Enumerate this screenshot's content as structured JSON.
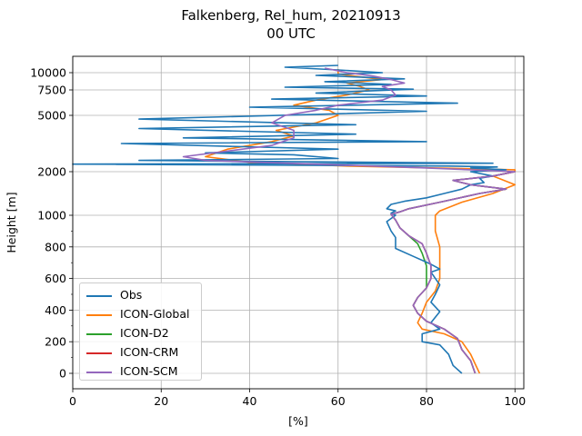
{
  "title": {
    "line1": "Falkenberg, Rel_hum, 20210913",
    "line2": "00 UTC"
  },
  "chart_data": {
    "type": "line",
    "title": "Falkenberg, Rel_hum, 20210913 00 UTC",
    "xlabel": "[%]",
    "ylabel": "Height [m]",
    "xlim": [
      0,
      102
    ],
    "x_ticks": [
      0,
      20,
      40,
      60,
      80,
      100
    ],
    "y_ticks_lower": [
      0,
      200,
      400,
      600,
      800,
      1000
    ],
    "y_ticks_upper": [
      2000,
      5000,
      7500,
      10000
    ],
    "y_scale_note": "linear 0-1000 m, compressed above",
    "grid": true,
    "legend_position": "lower-left",
    "colors": {
      "Obs": "#1f77b4",
      "ICON-Global": "#ff7f0e",
      "ICON-D2": "#2ca02c",
      "ICON-CRM": "#d62728",
      "ICON-SCM": "#9467bd"
    },
    "series": [
      {
        "name": "Obs",
        "points": [
          [
            88,
            0
          ],
          [
            86,
            50
          ],
          [
            85,
            120
          ],
          [
            83,
            180
          ],
          [
            79,
            200
          ],
          [
            79,
            250
          ],
          [
            83,
            280
          ],
          [
            81,
            320
          ],
          [
            83,
            390
          ],
          [
            81,
            450
          ],
          [
            82,
            500
          ],
          [
            83,
            560
          ],
          [
            81,
            640
          ],
          [
            83,
            660
          ],
          [
            81,
            690
          ],
          [
            77,
            740
          ],
          [
            73,
            790
          ],
          [
            73,
            860
          ],
          [
            72,
            900
          ],
          [
            71,
            960
          ],
          [
            73,
            1000
          ],
          [
            72,
            1050
          ],
          [
            73,
            1100
          ],
          [
            71,
            1150
          ],
          [
            72,
            1250
          ],
          [
            75,
            1320
          ],
          [
            80,
            1400
          ],
          [
            84,
            1500
          ],
          [
            88,
            1600
          ],
          [
            90,
            1700
          ],
          [
            93,
            1750
          ],
          [
            92,
            1850
          ],
          [
            95,
            1900
          ],
          [
            90,
            2000
          ],
          [
            98,
            2100
          ],
          [
            90,
            2200
          ],
          [
            96,
            2250
          ],
          [
            85,
            2300
          ],
          [
            0,
            2400
          ],
          [
            95,
            2450
          ],
          [
            15,
            2600
          ],
          [
            60,
            2700
          ],
          [
            50,
            2900
          ],
          [
            30,
            3000
          ],
          [
            60,
            3200
          ],
          [
            11,
            3500
          ],
          [
            80,
            3600
          ],
          [
            25,
            3800
          ],
          [
            64,
            4000
          ],
          [
            15,
            4300
          ],
          [
            64,
            4500
          ],
          [
            15,
            4800
          ],
          [
            55,
            5100
          ],
          [
            80,
            5400
          ],
          [
            40,
            5800
          ],
          [
            87,
            6200
          ],
          [
            45,
            6600
          ],
          [
            80,
            6900
          ],
          [
            55,
            7200
          ],
          [
            77,
            7600
          ],
          [
            48,
            7900
          ],
          [
            72,
            8300
          ],
          [
            57,
            8700
          ],
          [
            75,
            9100
          ],
          [
            55,
            9600
          ],
          [
            70,
            10000
          ],
          [
            60,
            10300
          ],
          [
            48,
            10600
          ],
          [
            60,
            10800
          ]
        ]
      },
      {
        "name": "ICON-Global",
        "points": [
          [
            92,
            0
          ],
          [
            91,
            60
          ],
          [
            90,
            120
          ],
          [
            88,
            200
          ],
          [
            84,
            250
          ],
          [
            79,
            280
          ],
          [
            78,
            320
          ],
          [
            79,
            380
          ],
          [
            80,
            450
          ],
          [
            82,
            520
          ],
          [
            83,
            600
          ],
          [
            83,
            700
          ],
          [
            83,
            800
          ],
          [
            82,
            900
          ],
          [
            82,
            1000
          ],
          [
            83,
            1100
          ],
          [
            88,
            1300
          ],
          [
            95,
            1500
          ],
          [
            100,
            1700
          ],
          [
            95,
            1900
          ],
          [
            100,
            2000
          ],
          [
            100,
            2100
          ],
          [
            82,
            2200
          ],
          [
            62,
            2300
          ],
          [
            40,
            2500
          ],
          [
            30,
            2800
          ],
          [
            35,
            3200
          ],
          [
            45,
            3600
          ],
          [
            50,
            3900
          ],
          [
            46,
            4200
          ],
          [
            55,
            4600
          ],
          [
            60,
            5000
          ],
          [
            58,
            5500
          ],
          [
            50,
            6000
          ],
          [
            55,
            6500
          ],
          [
            62,
            7000
          ],
          [
            67,
            7500
          ],
          [
            65,
            8000
          ],
          [
            62,
            8500
          ],
          [
            70,
            9000
          ],
          [
            60,
            9800
          ],
          [
            60,
            10400
          ]
        ]
      },
      {
        "name": "ICON-D2",
        "points": [
          [
            91,
            0
          ],
          [
            90,
            80
          ],
          [
            88,
            150
          ],
          [
            87,
            220
          ],
          [
            84,
            280
          ],
          [
            80,
            330
          ],
          [
            78,
            380
          ],
          [
            77,
            430
          ],
          [
            78,
            480
          ],
          [
            80,
            540
          ],
          [
            80,
            600
          ],
          [
            80,
            680
          ],
          [
            79,
            760
          ],
          [
            78,
            820
          ],
          [
            76,
            870
          ],
          [
            74,
            920
          ],
          [
            73,
            970
          ],
          [
            72,
            1020
          ],
          [
            74,
            1080
          ],
          [
            76,
            1150
          ],
          [
            83,
            1300
          ],
          [
            92,
            1500
          ],
          [
            98,
            1600
          ],
          [
            90,
            1700
          ],
          [
            86,
            1800
          ],
          [
            95,
            1900
          ],
          [
            100,
            2000
          ]
        ]
      },
      {
        "name": "ICON-CRM",
        "points": [
          [
            91,
            0
          ],
          [
            90,
            80
          ],
          [
            88,
            150
          ],
          [
            87,
            220
          ],
          [
            84,
            280
          ],
          [
            80,
            330
          ],
          [
            78,
            380
          ],
          [
            77,
            430
          ],
          [
            78,
            480
          ],
          [
            80,
            540
          ],
          [
            81,
            600
          ],
          [
            81,
            680
          ],
          [
            80,
            760
          ],
          [
            79,
            820
          ],
          [
            76,
            870
          ],
          [
            74,
            920
          ],
          [
            73,
            970
          ],
          [
            72,
            1020
          ],
          [
            74,
            1080
          ],
          [
            76,
            1150
          ],
          [
            83,
            1300
          ],
          [
            92,
            1500
          ],
          [
            98,
            1600
          ],
          [
            90,
            1700
          ],
          [
            86,
            1800
          ],
          [
            95,
            1900
          ],
          [
            100,
            2000
          ]
        ]
      },
      {
        "name": "ICON-SCM",
        "points": [
          [
            91,
            0
          ],
          [
            90,
            80
          ],
          [
            88,
            150
          ],
          [
            87,
            220
          ],
          [
            84,
            280
          ],
          [
            80,
            330
          ],
          [
            78,
            380
          ],
          [
            77,
            430
          ],
          [
            78,
            480
          ],
          [
            80,
            540
          ],
          [
            81,
            600
          ],
          [
            81,
            680
          ],
          [
            80,
            760
          ],
          [
            79,
            820
          ],
          [
            76,
            870
          ],
          [
            74,
            920
          ],
          [
            73,
            970
          ],
          [
            72,
            1020
          ],
          [
            74,
            1080
          ],
          [
            76,
            1150
          ],
          [
            83,
            1300
          ],
          [
            92,
            1500
          ],
          [
            98,
            1600
          ],
          [
            90,
            1700
          ],
          [
            86,
            1800
          ],
          [
            95,
            1900
          ],
          [
            100,
            2000
          ],
          [
            80,
            2200
          ],
          [
            55,
            2400
          ],
          [
            30,
            2600
          ],
          [
            25,
            2800
          ],
          [
            35,
            3100
          ],
          [
            45,
            3400
          ],
          [
            50,
            3800
          ],
          [
            50,
            4200
          ],
          [
            45,
            4600
          ],
          [
            48,
            5000
          ],
          [
            55,
            5500
          ],
          [
            60,
            6000
          ],
          [
            70,
            6500
          ],
          [
            73,
            7000
          ],
          [
            72,
            7500
          ],
          [
            70,
            8000
          ],
          [
            75,
            8500
          ],
          [
            72,
            9000
          ],
          [
            68,
            9500
          ],
          [
            62,
            10000
          ],
          [
            57,
            10500
          ]
        ]
      }
    ]
  }
}
